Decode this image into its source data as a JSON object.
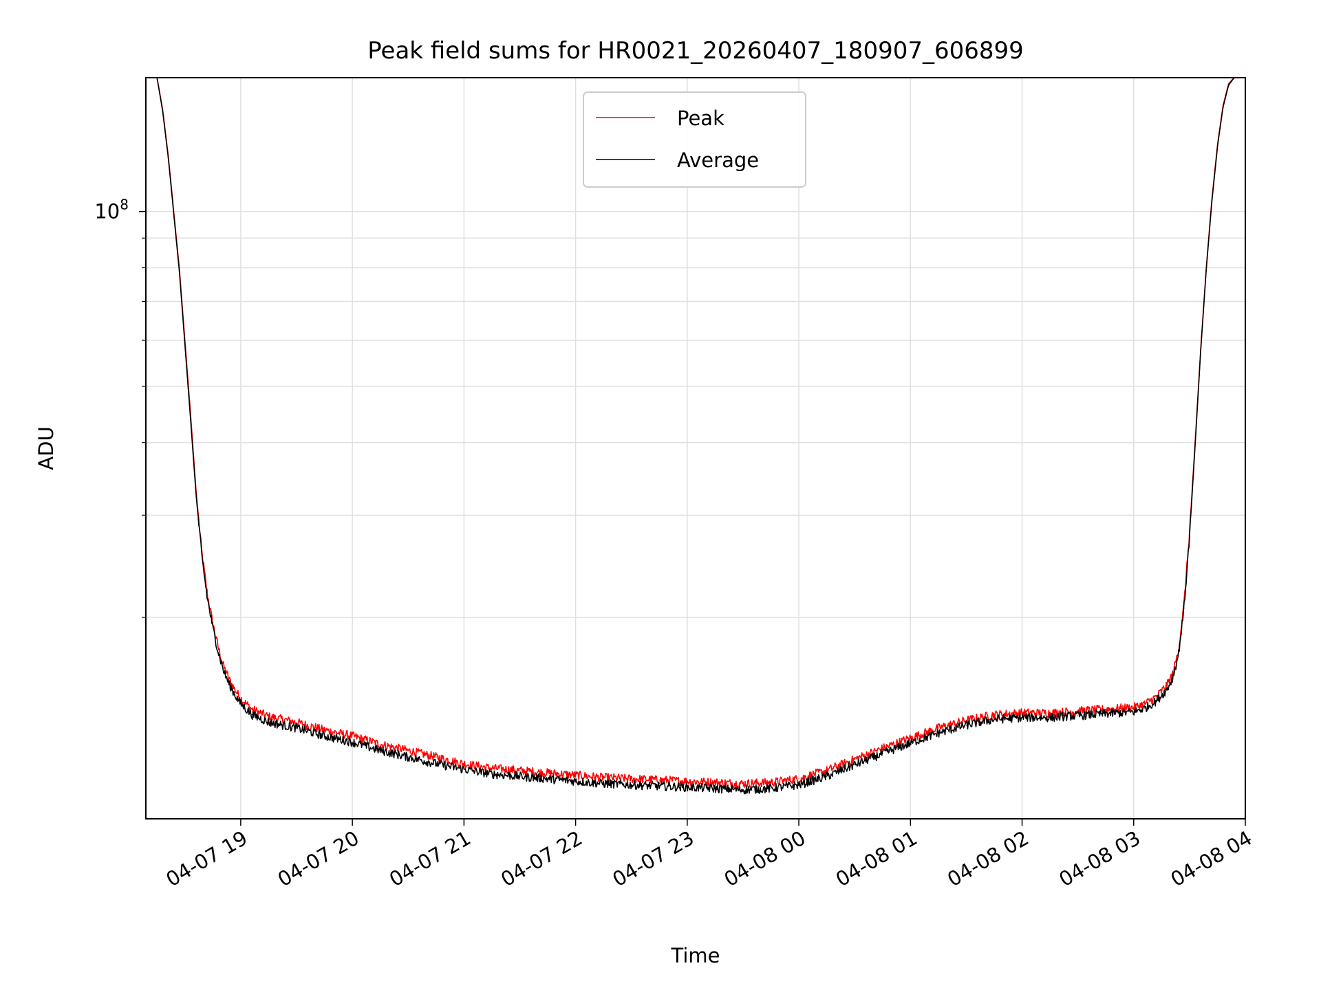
{
  "chart_data": {
    "type": "line",
    "title": "Peak field sums for HR0021_20260407_180907_606899",
    "xlabel": "Time",
    "ylabel": "ADU",
    "yscale": "log",
    "x_unit": "hours since 2026-04-07 00:00",
    "xlim": [
      18.15,
      28.0
    ],
    "ylim": [
      9000000,
      170000000
    ],
    "grid": true,
    "legend": {
      "position": "upper center",
      "entries": [
        "Peak",
        "Average"
      ]
    },
    "xticks": [
      {
        "value": 19,
        "label": "04-07 19"
      },
      {
        "value": 20,
        "label": "04-07 20"
      },
      {
        "value": 21,
        "label": "04-07 21"
      },
      {
        "value": 22,
        "label": "04-07 22"
      },
      {
        "value": 23,
        "label": "04-07 23"
      },
      {
        "value": 24,
        "label": "04-08 00"
      },
      {
        "value": 25,
        "label": "04-08 01"
      },
      {
        "value": 26,
        "label": "04-08 02"
      },
      {
        "value": 27,
        "label": "04-08 03"
      },
      {
        "value": 28,
        "label": "04-08 04"
      }
    ],
    "yticks_major": [
      {
        "value": 100000000,
        "base": "10",
        "exp": "8"
      }
    ],
    "yticks_minor": [
      20000000,
      30000000,
      40000000,
      50000000,
      60000000,
      70000000,
      80000000,
      90000000
    ],
    "x": [
      18.15,
      18.2,
      18.25,
      18.3,
      18.35,
      18.4,
      18.45,
      18.5,
      18.55,
      18.6,
      18.65,
      18.7,
      18.75,
      18.8,
      18.85,
      18.9,
      18.95,
      19.0,
      19.1,
      19.25,
      19.5,
      19.75,
      20.0,
      20.25,
      20.5,
      20.75,
      21.0,
      21.25,
      21.5,
      21.75,
      22.0,
      22.25,
      22.5,
      22.75,
      23.0,
      23.25,
      23.5,
      23.75,
      24.0,
      24.25,
      24.5,
      24.75,
      25.0,
      25.25,
      25.5,
      25.75,
      26.0,
      26.25,
      26.5,
      26.75,
      27.0,
      27.1,
      27.2,
      27.3,
      27.35,
      27.4,
      27.45,
      27.5,
      27.55,
      27.6,
      27.65,
      27.7,
      27.75,
      27.8,
      27.85,
      27.9,
      27.95,
      28.0
    ],
    "series": [
      {
        "name": "Peak",
        "color": "#ff0000",
        "values": [
          170000000,
          170000000,
          170000000,
          150000000,
          125000000,
          100000000,
          80000000,
          60000000,
          45000000,
          33000000,
          26000000,
          22000000,
          19500000,
          17700000,
          16400000,
          15600000,
          15000000,
          14500000,
          13900000,
          13500000,
          13200000,
          12800000,
          12500000,
          12100000,
          11800000,
          11500000,
          11200000,
          11000000,
          10900000,
          10800000,
          10700000,
          10600000,
          10550000,
          10500000,
          10450000,
          10400000,
          10350000,
          10400000,
          10550000,
          10900000,
          11400000,
          11900000,
          12400000,
          12900000,
          13300000,
          13600000,
          13700000,
          13700000,
          13800000,
          13900000,
          14000000,
          14200000,
          14600000,
          15300000,
          16000000,
          17500000,
          21000000,
          28000000,
          40000000,
          58000000,
          80000000,
          105000000,
          130000000,
          152000000,
          166000000,
          170000000,
          170000000,
          170000000
        ]
      },
      {
        "name": "Average",
        "color": "#000000",
        "values": [
          170000000,
          170000000,
          170000000,
          149000000,
          124000000,
          99000000,
          79000000,
          59000000,
          44000000,
          32500000,
          25600000,
          21600000,
          19200000,
          17400000,
          16100000,
          15300000,
          14700000,
          14200000,
          13600000,
          13200000,
          12900000,
          12500000,
          12200000,
          11800000,
          11500000,
          11200000,
          10950000,
          10750000,
          10650000,
          10550000,
          10450000,
          10350000,
          10300000,
          10250000,
          10200000,
          10150000,
          10100000,
          10150000,
          10300000,
          10650000,
          11150000,
          11650000,
          12150000,
          12650000,
          13050000,
          13350000,
          13450000,
          13450000,
          13550000,
          13650000,
          13750000,
          13950000,
          14350000,
          15050000,
          15750000,
          17200000,
          20700000,
          27500000,
          39500000,
          57500000,
          79500000,
          104000000,
          129000000,
          151000000,
          165000000,
          170000000,
          170000000,
          170000000
        ]
      }
    ]
  }
}
